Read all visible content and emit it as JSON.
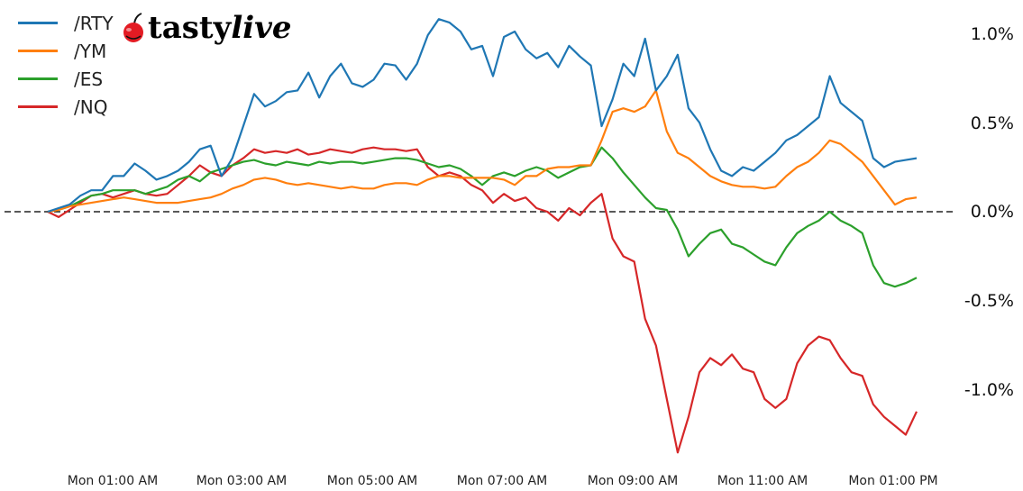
{
  "brand": {
    "name_bold": "tasty",
    "name_italic": "live",
    "icon": "cherry-icon"
  },
  "chart_data": {
    "type": "line",
    "title": "",
    "xlabel": "",
    "ylabel": "",
    "ylim": [
      -1.3,
      1.1
    ],
    "y_ticks": [
      "1.0%",
      "0.5%",
      "0.0%",
      "-0.5%",
      "-1.0%"
    ],
    "x_ticks": [
      "Mon 01:00 AM",
      "Mon 03:00 AM",
      "Mon 05:00 AM",
      "Mon 07:00 AM",
      "Mon 09:00 AM",
      "Mon 11:00 AM",
      "Mon 01:00 PM"
    ],
    "legend_position": "upper left",
    "reference_line": {
      "y": 0.0,
      "style": "dashed",
      "color": "#222222"
    },
    "x_start_minutes": 0,
    "x_step_minutes": 10,
    "series": [
      {
        "name": "/RTY",
        "color": "#1f77b4",
        "values": [
          0,
          0.02,
          0.04,
          0.09,
          0.12,
          0.12,
          0.2,
          0.2,
          0.27,
          0.23,
          0.18,
          0.2,
          0.23,
          0.28,
          0.35,
          0.37,
          0.2,
          0.3,
          0.48,
          0.66,
          0.59,
          0.62,
          0.67,
          0.68,
          0.78,
          0.64,
          0.76,
          0.83,
          0.72,
          0.7,
          0.74,
          0.83,
          0.82,
          0.74,
          0.83,
          0.99,
          1.08,
          1.06,
          1.01,
          0.91,
          0.93,
          0.76,
          0.98,
          1.01,
          0.91,
          0.86,
          0.89,
          0.81,
          0.93,
          0.87,
          0.82,
          0.48,
          0.63,
          0.83,
          0.76,
          0.97,
          0.68,
          0.76,
          0.88,
          0.58,
          0.5,
          0.35,
          0.23,
          0.2,
          0.25,
          0.23,
          0.28,
          0.33,
          0.4,
          0.43,
          0.48,
          0.53,
          0.76,
          0.61,
          0.56,
          0.51,
          0.3,
          0.25,
          0.28,
          0.29,
          0.3
        ]
      },
      {
        "name": "/YM",
        "color": "#ff7f0e",
        "values": [
          0,
          0.01,
          0.03,
          0.04,
          0.05,
          0.06,
          0.07,
          0.08,
          0.07,
          0.06,
          0.05,
          0.05,
          0.05,
          0.06,
          0.07,
          0.08,
          0.1,
          0.13,
          0.15,
          0.18,
          0.19,
          0.18,
          0.16,
          0.15,
          0.16,
          0.15,
          0.14,
          0.13,
          0.14,
          0.13,
          0.13,
          0.15,
          0.16,
          0.16,
          0.15,
          0.18,
          0.2,
          0.2,
          0.19,
          0.19,
          0.19,
          0.19,
          0.18,
          0.15,
          0.2,
          0.2,
          0.24,
          0.25,
          0.25,
          0.26,
          0.26,
          0.4,
          0.56,
          0.58,
          0.56,
          0.59,
          0.68,
          0.45,
          0.33,
          0.3,
          0.25,
          0.2,
          0.17,
          0.15,
          0.14,
          0.14,
          0.13,
          0.14,
          0.2,
          0.25,
          0.28,
          0.33,
          0.4,
          0.38,
          0.33,
          0.28,
          0.2,
          0.12,
          0.04,
          0.07,
          0.08
        ]
      },
      {
        "name": "/ES",
        "color": "#2ca02c",
        "values": [
          0,
          0.01,
          0.03,
          0.06,
          0.09,
          0.1,
          0.12,
          0.12,
          0.12,
          0.1,
          0.12,
          0.14,
          0.18,
          0.2,
          0.17,
          0.22,
          0.24,
          0.26,
          0.28,
          0.29,
          0.27,
          0.26,
          0.28,
          0.27,
          0.26,
          0.28,
          0.27,
          0.28,
          0.28,
          0.27,
          0.28,
          0.29,
          0.3,
          0.3,
          0.29,
          0.27,
          0.25,
          0.26,
          0.24,
          0.2,
          0.15,
          0.2,
          0.22,
          0.2,
          0.23,
          0.25,
          0.23,
          0.19,
          0.22,
          0.25,
          0.26,
          0.36,
          0.3,
          0.22,
          0.15,
          0.08,
          0.02,
          0.01,
          -0.1,
          -0.25,
          -0.18,
          -0.12,
          -0.1,
          -0.18,
          -0.2,
          -0.24,
          -0.28,
          -0.3,
          -0.2,
          -0.12,
          -0.08,
          -0.05,
          0,
          -0.05,
          -0.08,
          -0.12,
          -0.3,
          -0.4,
          -0.42,
          -0.4,
          -0.37
        ]
      },
      {
        "name": "/NQ",
        "color": "#d62728",
        "values": [
          0,
          -0.03,
          0.01,
          0.05,
          0.09,
          0.1,
          0.08,
          0.1,
          0.12,
          0.1,
          0.09,
          0.1,
          0.15,
          0.2,
          0.26,
          0.22,
          0.2,
          0.26,
          0.3,
          0.35,
          0.33,
          0.34,
          0.33,
          0.35,
          0.32,
          0.33,
          0.35,
          0.34,
          0.33,
          0.35,
          0.36,
          0.35,
          0.35,
          0.34,
          0.35,
          0.25,
          0.2,
          0.22,
          0.2,
          0.15,
          0.12,
          0.05,
          0.1,
          0.06,
          0.08,
          0.02,
          0,
          -0.05,
          0.02,
          -0.02,
          0.05,
          0.1,
          -0.15,
          -0.25,
          -0.28,
          -0.6,
          -0.75,
          -1.05,
          -1.35,
          -1.15,
          -0.9,
          -0.82,
          -0.86,
          -0.8,
          -0.88,
          -0.9,
          -1.05,
          -1.1,
          -1.05,
          -0.85,
          -0.75,
          -0.7,
          -0.72,
          -0.82,
          -0.9,
          -0.92,
          -1.08,
          -1.15,
          -1.2,
          -1.25,
          -1.12
        ]
      }
    ]
  }
}
